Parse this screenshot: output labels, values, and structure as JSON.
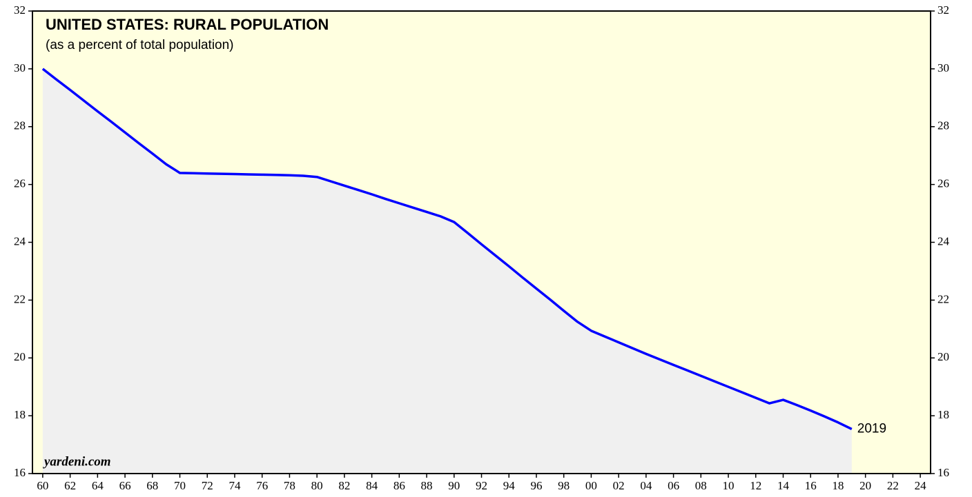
{
  "chart_data": {
    "type": "area",
    "title": "UNITED STATES: RURAL POPULATION",
    "subtitle": "(as a percent of total population)",
    "source": "yardeni.com",
    "annotation": "2019",
    "background": "#ffffe0",
    "fill_color": "#f0f0f0",
    "x": [
      1960,
      1961,
      1962,
      1963,
      1964,
      1965,
      1966,
      1967,
      1968,
      1969,
      1970,
      1971,
      1972,
      1973,
      1974,
      1975,
      1976,
      1977,
      1978,
      1979,
      1980,
      1981,
      1982,
      1983,
      1984,
      1985,
      1986,
      1987,
      1988,
      1989,
      1990,
      1991,
      1992,
      1993,
      1994,
      1995,
      1996,
      1997,
      1998,
      1999,
      2000,
      2001,
      2002,
      2003,
      2004,
      2005,
      2006,
      2007,
      2008,
      2009,
      2010,
      2011,
      2012,
      2013,
      2014,
      2015,
      2016,
      2017,
      2018,
      2019
    ],
    "series": [
      {
        "name": "Rural population",
        "color": "#0000ff",
        "values": [
          30.0,
          29.63,
          29.27,
          28.9,
          28.53,
          28.17,
          27.8,
          27.43,
          27.07,
          26.7,
          26.4,
          26.39,
          26.38,
          26.37,
          26.36,
          26.35,
          26.34,
          26.33,
          26.32,
          26.3,
          26.26,
          26.11,
          25.96,
          25.81,
          25.66,
          25.5,
          25.35,
          25.2,
          25.05,
          24.9,
          24.7,
          24.32,
          23.93,
          23.55,
          23.17,
          22.78,
          22.4,
          22.02,
          21.63,
          21.25,
          20.94,
          20.74,
          20.54,
          20.34,
          20.14,
          19.95,
          19.76,
          19.57,
          19.38,
          19.19,
          19.0,
          18.81,
          18.62,
          18.43,
          18.55,
          18.37,
          18.18,
          17.98,
          17.77,
          17.54
        ]
      }
    ],
    "xlim": [
      1959.25,
      2024.75
    ],
    "ylim": [
      16,
      32
    ],
    "xticks": [
      {
        "value": 1960,
        "label": "60"
      },
      {
        "value": 1962,
        "label": "62"
      },
      {
        "value": 1964,
        "label": "64"
      },
      {
        "value": 1966,
        "label": "66"
      },
      {
        "value": 1968,
        "label": "68"
      },
      {
        "value": 1970,
        "label": "70"
      },
      {
        "value": 1972,
        "label": "72"
      },
      {
        "value": 1974,
        "label": "74"
      },
      {
        "value": 1976,
        "label": "76"
      },
      {
        "value": 1978,
        "label": "78"
      },
      {
        "value": 1980,
        "label": "80"
      },
      {
        "value": 1982,
        "label": "82"
      },
      {
        "value": 1984,
        "label": "84"
      },
      {
        "value": 1986,
        "label": "86"
      },
      {
        "value": 1988,
        "label": "88"
      },
      {
        "value": 1990,
        "label": "90"
      },
      {
        "value": 1992,
        "label": "92"
      },
      {
        "value": 1994,
        "label": "94"
      },
      {
        "value": 1996,
        "label": "96"
      },
      {
        "value": 1998,
        "label": "98"
      },
      {
        "value": 2000,
        "label": "00"
      },
      {
        "value": 2002,
        "label": "02"
      },
      {
        "value": 2004,
        "label": "04"
      },
      {
        "value": 2006,
        "label": "06"
      },
      {
        "value": 2008,
        "label": "08"
      },
      {
        "value": 2010,
        "label": "10"
      },
      {
        "value": 2012,
        "label": "12"
      },
      {
        "value": 2014,
        "label": "14"
      },
      {
        "value": 2016,
        "label": "16"
      },
      {
        "value": 2018,
        "label": "18"
      },
      {
        "value": 2020,
        "label": "20"
      },
      {
        "value": 2022,
        "label": "22"
      },
      {
        "value": 2024,
        "label": "24"
      }
    ],
    "yticks": [
      16,
      18,
      20,
      22,
      24,
      26,
      28,
      30,
      32
    ]
  }
}
